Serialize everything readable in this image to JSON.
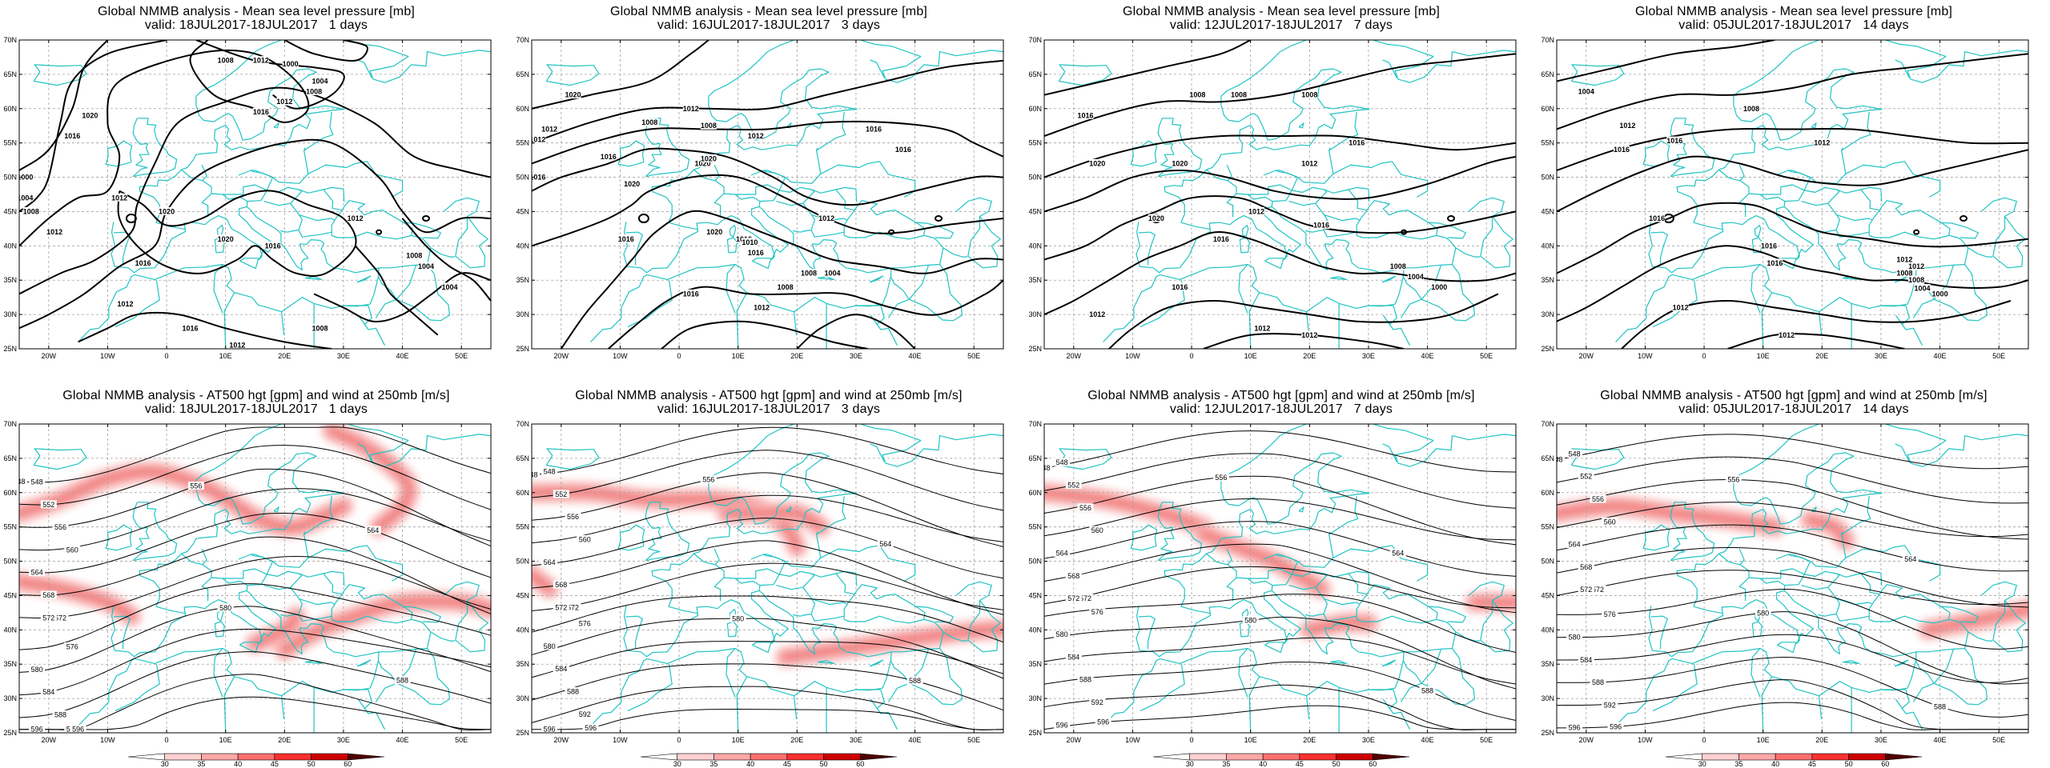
{
  "panels": [
    {
      "id": "mslp-1d",
      "title": "Global NMMB analysis - Mean sea level pressure [mb]",
      "valid": "valid: 18JUL2017-18JUL2017   1 days",
      "type": "mslp",
      "period_days": 1
    },
    {
      "id": "mslp-3d",
      "title": "Global NMMB analysis - Mean sea level pressure [mb]",
      "valid": "valid: 16JUL2017-18JUL2017   3 days",
      "type": "mslp",
      "period_days": 3
    },
    {
      "id": "mslp-7d",
      "title": "Global NMMB analysis - Mean sea level pressure [mb]",
      "valid": "valid: 12JUL2017-18JUL2017   7 days",
      "type": "mslp",
      "period_days": 7
    },
    {
      "id": "mslp-14d",
      "title": "Global NMMB analysis - Mean sea level pressure [mb]",
      "valid": "valid: 05JUL2017-18JUL2017   14 days",
      "type": "mslp",
      "period_days": 14
    },
    {
      "id": "z500-1d",
      "title": "Global NMMB analysis - AT500 hgt [gpm] and wind at 250mb [m/s]",
      "valid": "valid: 18JUL2017-18JUL2017   1 days",
      "type": "z500",
      "period_days": 1
    },
    {
      "id": "z500-3d",
      "title": "Global NMMB analysis - AT500 hgt [gpm] and wind at 250mb [m/s]",
      "valid": "valid: 16JUL2017-18JUL2017   3 days",
      "type": "z500",
      "period_days": 3
    },
    {
      "id": "z500-7d",
      "title": "Global NMMB analysis - AT500 hgt [gpm] and wind at 250mb [m/s]",
      "valid": "valid: 12JUL2017-18JUL2017   7 days",
      "type": "z500",
      "period_days": 7
    },
    {
      "id": "z500-14d",
      "title": "Global NMMB analysis - AT500 hgt [gpm] and wind at 250mb [m/s]",
      "valid": "valid: 05JUL2017-18JUL2017   14 days",
      "type": "z500",
      "period_days": 14
    }
  ],
  "axes": {
    "lat_labels": [
      "70N",
      "65N",
      "60N",
      "55N",
      "50N",
      "45N",
      "40N",
      "35N",
      "30N",
      "25N"
    ],
    "lat_values": [
      70,
      65,
      60,
      55,
      50,
      45,
      40,
      35,
      30,
      25
    ],
    "lon_labels": [
      "20W",
      "10W",
      "0",
      "10E",
      "20E",
      "30E",
      "40E",
      "50E"
    ],
    "lon_values": [
      -20,
      -10,
      0,
      10,
      20,
      30,
      40,
      50
    ],
    "lon_range": [
      -25,
      55
    ],
    "lat_range": [
      25,
      70
    ]
  },
  "mslp_contour_labels": [
    "1000",
    "1004",
    "1008",
    "1012",
    "1016",
    "1020"
  ],
  "z500_contour_labels": [
    "548",
    "552",
    "556",
    "560",
    "564",
    "568",
    "572",
    "576",
    "580",
    "584",
    "588",
    "592",
    "596"
  ],
  "colorbar": {
    "ticks": [
      "30",
      "35",
      "40",
      "45",
      "50",
      "60"
    ],
    "colors": [
      "#ffffff",
      "#ffd0d0",
      "#ffa8a8",
      "#ff7070",
      "#ff3030",
      "#cc0000",
      "#500000"
    ]
  },
  "colors": {
    "coast": "#22c3c3",
    "contour": "#000000",
    "grid": "#a0a0a0",
    "jet": "#f58a8a"
  }
}
